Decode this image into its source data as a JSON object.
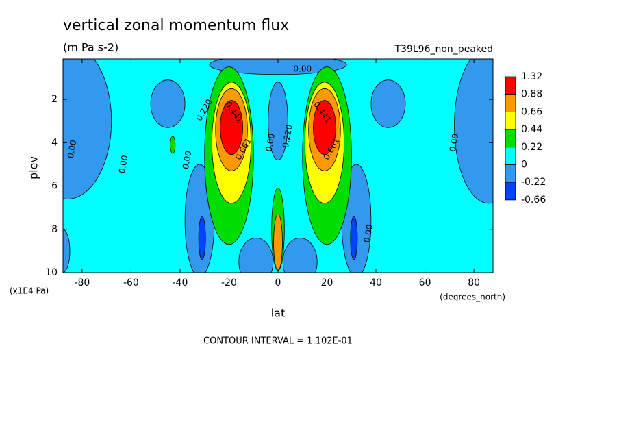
{
  "chart_data": {
    "type": "contour",
    "title": "vertical zonal momentum flux",
    "subtitle": "(m Pa s-2)",
    "dataset": "T39L96_non_peaked",
    "x_label": "lat",
    "x_units": "(degrees_north)",
    "y_label": "plev",
    "y_units": "(x1E4 Pa)",
    "xlim": [
      -87.8,
      87.8
    ],
    "xticks": [
      -80,
      -60,
      -40,
      -20,
      0,
      20,
      40,
      60,
      80
    ],
    "ylim": [
      10,
      0.13
    ],
    "yticks": [
      2,
      4,
      6,
      8,
      10
    ],
    "levels": [
      1.32,
      0.88,
      0.66,
      0.44,
      0.22,
      0,
      -0.22,
      -0.66
    ],
    "colors": [
      "#ff0000",
      "#ff9900",
      "#ffff00",
      "#00dd00",
      "#00ffff",
      "#3399ee",
      "#0044ff"
    ],
    "contour_labels": [
      "0.00",
      "0.00",
      "0.00",
      "0.00",
      "0.00",
      "0.00",
      "0.00",
      "0.220",
      "0.441",
      "0.661",
      "0.220",
      "0.441",
      "0.661"
    ],
    "note": "CONTOUR INTERVAL = 1.102E-01"
  }
}
